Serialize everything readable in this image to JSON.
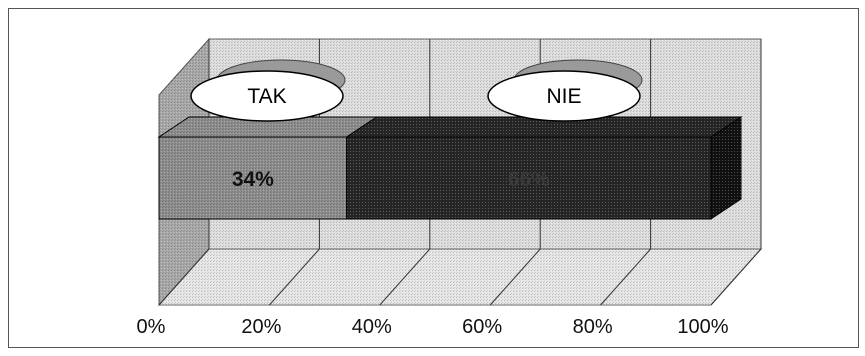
{
  "chart_data": {
    "type": "bar",
    "orientation": "horizontal",
    "stacked": true,
    "percent_stacked": true,
    "three_d": true,
    "title": "",
    "xlabel": "",
    "ylabel": "",
    "xlim": [
      0,
      100
    ],
    "x_ticks": [
      "0%",
      "20%",
      "40%",
      "60%",
      "80%",
      "100%"
    ],
    "grid": true,
    "legend": "top",
    "series": [
      {
        "name": "TAK",
        "values": [
          34
        ],
        "label": "34%",
        "color": "#8c8c8c"
      },
      {
        "name": "NIE",
        "values": [
          66
        ],
        "label": "66%",
        "color": "#262626"
      }
    ],
    "colors": {
      "wall": "#dedede",
      "floor": "#e6e6e6",
      "side_wall": "#a8a8a8",
      "gridline": "#333333",
      "legend_shadow": "#9a9a9a"
    }
  }
}
